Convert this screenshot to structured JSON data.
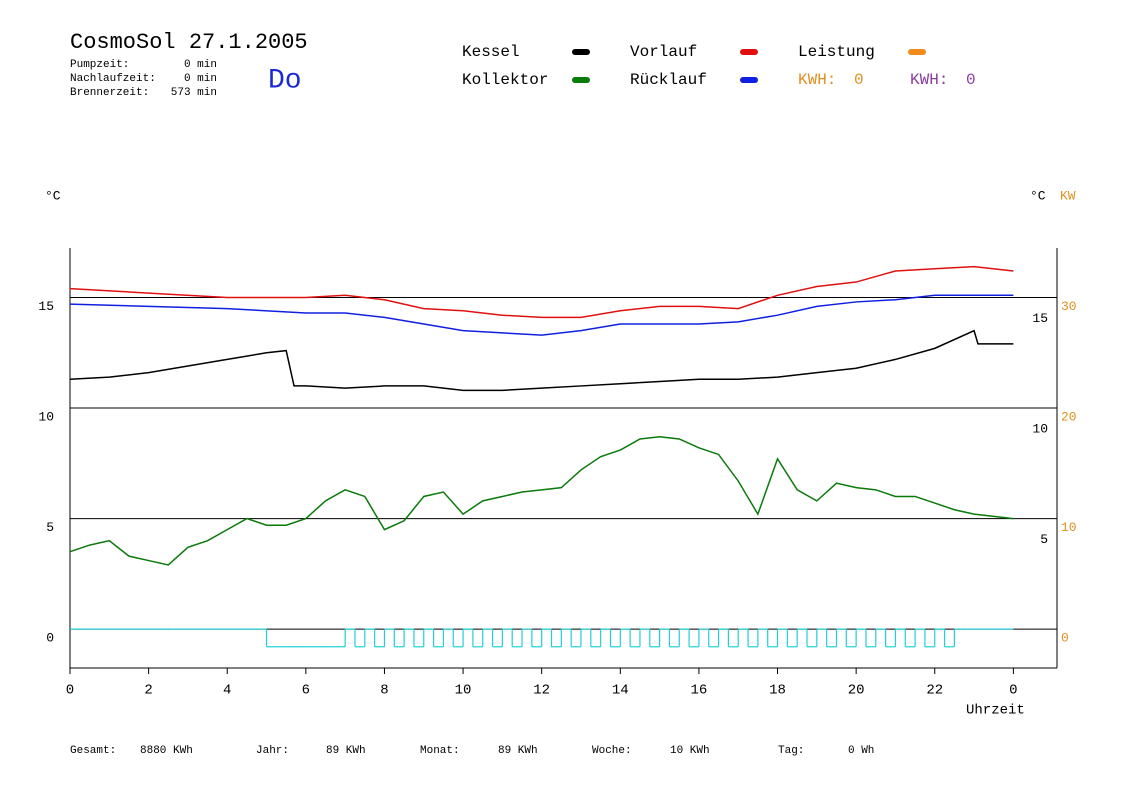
{
  "chart_data": {
    "type": "line",
    "title": "CosmoSol 27.1.2005",
    "day": "Do",
    "stats": [
      {
        "label": "Pumpzeit:",
        "value": "0 min"
      },
      {
        "label": "Nachlaufzeit:",
        "value": "0 min"
      },
      {
        "label": "Brennerzeit:",
        "value": "573 min"
      }
    ],
    "kwh": [
      {
        "label": "KWH:",
        "value": "0",
        "color": "#e0901e"
      },
      {
        "label": "KWH:",
        "value": "0",
        "color": "#8a3ca0"
      }
    ],
    "ylabel": "°C",
    "y3label": "°C",
    "y2label": "KW",
    "y2color": "#e0901e",
    "xlabel": "Uhrzeit",
    "xlim": [
      0,
      25.11
    ],
    "xticks": [
      0,
      2,
      4,
      6,
      8,
      10,
      12,
      14,
      16,
      18,
      20,
      22,
      {
        "value": 24,
        "label": "0"
      }
    ],
    "ylim": [
      -1.76,
      17.24
    ],
    "yticks": [
      0,
      5,
      10,
      15
    ],
    "y3ticks": [
      5,
      10,
      15
    ],
    "y2lim": [
      -3.52,
      34.48
    ],
    "y2ticks": [
      0,
      10,
      20,
      30
    ],
    "grid": true,
    "series": [
      {
        "name": "Kessel",
        "color": "#000000",
        "x": [
          0,
          1,
          2,
          3,
          4,
          5,
          5.5,
          5.7,
          6,
          7,
          8,
          9,
          10,
          11,
          12,
          13,
          14,
          15,
          16,
          17,
          18,
          19,
          20,
          21,
          22,
          23,
          23.1,
          24
        ],
        "values": [
          11.3,
          11.4,
          11.6,
          11.9,
          12.2,
          12.5,
          12.6,
          11.0,
          11.0,
          10.9,
          11.0,
          11.0,
          10.8,
          10.8,
          10.9,
          11.0,
          11.1,
          11.2,
          11.3,
          11.3,
          11.4,
          11.6,
          11.8,
          12.2,
          12.7,
          13.5,
          12.9,
          12.9
        ]
      },
      {
        "name": "Kollektor",
        "color": "#0a7a0a",
        "x": [
          0,
          0.5,
          1,
          1.5,
          2,
          2.5,
          3,
          3.5,
          4,
          4.5,
          5,
          5.5,
          6,
          6.5,
          7,
          7.5,
          8,
          8.5,
          9,
          9.5,
          10,
          10.5,
          11,
          11.5,
          12,
          12.5,
          13,
          13.5,
          14,
          14.5,
          15,
          15.5,
          16,
          16.5,
          17,
          17.5,
          18,
          18.5,
          19,
          19.5,
          20,
          20.5,
          21,
          21.5,
          22,
          22.5,
          23,
          23.5,
          24
        ],
        "values": [
          3.5,
          3.8,
          4.0,
          3.3,
          3.1,
          2.9,
          3.7,
          4.0,
          4.5,
          5.0,
          4.7,
          4.7,
          5.0,
          5.8,
          6.3,
          6.0,
          4.5,
          4.9,
          6.0,
          6.2,
          5.2,
          5.8,
          6.0,
          6.2,
          6.3,
          6.4,
          7.2,
          7.8,
          8.1,
          8.6,
          8.7,
          8.6,
          8.2,
          7.9,
          6.7,
          5.2,
          7.7,
          6.3,
          5.8,
          6.6,
          6.4,
          6.3,
          6.0,
          6.0,
          5.7,
          5.4,
          5.2,
          5.1,
          5.0
        ]
      },
      {
        "name": "Vorlauf",
        "color": "#e01010",
        "x": [
          0,
          2,
          4,
          6,
          7,
          8,
          9,
          10,
          11,
          12,
          13,
          14,
          15,
          16,
          17,
          18,
          19,
          20,
          21,
          22,
          23,
          24
        ],
        "values": [
          15.4,
          15.2,
          15.0,
          15.0,
          15.1,
          14.9,
          14.5,
          14.4,
          14.2,
          14.1,
          14.1,
          14.4,
          14.6,
          14.6,
          14.5,
          15.1,
          15.5,
          15.7,
          16.2,
          16.3,
          16.4,
          16.2
        ]
      },
      {
        "name": "Rücklauf",
        "color": "#1020e0",
        "x": [
          0,
          2,
          4,
          6,
          7,
          8,
          9,
          10,
          11,
          12,
          13,
          14,
          15,
          16,
          17,
          18,
          19,
          20,
          21,
          22,
          23,
          24
        ],
        "values": [
          14.7,
          14.6,
          14.5,
          14.3,
          14.3,
          14.1,
          13.8,
          13.5,
          13.4,
          13.3,
          13.5,
          13.8,
          13.8,
          13.8,
          13.9,
          14.2,
          14.6,
          14.8,
          14.9,
          15.1,
          15.1,
          15.1
        ]
      },
      {
        "name": "Leistung",
        "color": "#f08a1a",
        "x": [],
        "values": []
      },
      {
        "color": "#20d0d8",
        "step": true,
        "x": [
          0,
          0.25,
          0.5,
          0.75,
          1,
          1.25,
          1.5,
          1.75,
          2,
          2.25,
          2.5,
          2.75,
          3,
          3.25,
          3.5,
          3.75,
          4,
          4.25,
          4.5,
          4.75,
          5,
          5.25,
          5.5,
          5.75,
          6,
          6.25,
          6.5,
          6.75,
          7,
          7.25,
          7.5,
          7.75,
          8,
          8.25,
          8.5,
          8.75,
          9,
          9.25,
          9.5,
          9.75,
          10,
          10.25,
          10.5,
          10.75,
          11,
          11.25,
          11.5,
          11.75,
          12,
          12.25,
          12.5,
          12.75,
          13,
          13.25,
          13.5,
          13.75,
          14,
          14.25,
          14.5,
          14.75,
          15,
          15.25,
          15.5,
          15.75,
          16,
          16.25,
          16.5,
          16.75,
          17,
          17.25,
          17.5,
          17.75,
          18,
          18.25,
          18.5,
          18.75,
          19,
          19.25,
          19.5,
          19.75,
          20,
          20.25,
          20.5,
          20.75,
          21,
          21.25,
          21.5,
          21.75,
          22,
          22.25,
          22.5,
          22.75,
          23,
          23.25,
          23.5,
          23.75,
          24
        ],
        "values": [
          0,
          0,
          0,
          0,
          0,
          0,
          0,
          0,
          0,
          0,
          0,
          0,
          0,
          0,
          0,
          0,
          0,
          0,
          0,
          0,
          -0.8,
          -0.8,
          -0.8,
          -0.8,
          -0.8,
          -0.8,
          -0.8,
          -0.8,
          0,
          -0.8,
          0,
          -0.8,
          0,
          -0.8,
          0,
          -0.8,
          0,
          -0.8,
          0,
          -0.8,
          0,
          -0.8,
          0,
          -0.8,
          0,
          -0.8,
          0,
          -0.8,
          0,
          -0.8,
          0,
          -0.8,
          0,
          -0.8,
          0,
          -0.8,
          0,
          -0.8,
          0,
          -0.8,
          0,
          -0.8,
          0,
          -0.8,
          0,
          -0.8,
          0,
          -0.8,
          0,
          -0.8,
          0,
          -0.8,
          0,
          -0.8,
          0,
          -0.8,
          0,
          -0.8,
          0,
          -0.8,
          0,
          -0.8,
          0,
          -0.8,
          0,
          -0.8,
          0,
          -0.8,
          0,
          -0.8,
          0,
          0,
          0,
          0,
          0,
          0,
          0
        ]
      }
    ],
    "totals": [
      {
        "label": "Gesamt:",
        "value": "8880 KWh"
      },
      {
        "label": "Jahr:",
        "value": "89 KWh"
      },
      {
        "label": "Monat:",
        "value": "89 KWh"
      },
      {
        "label": "Woche:",
        "value": "10 KWh"
      },
      {
        "label": "Tag:",
        "value": "0 Wh"
      }
    ]
  }
}
